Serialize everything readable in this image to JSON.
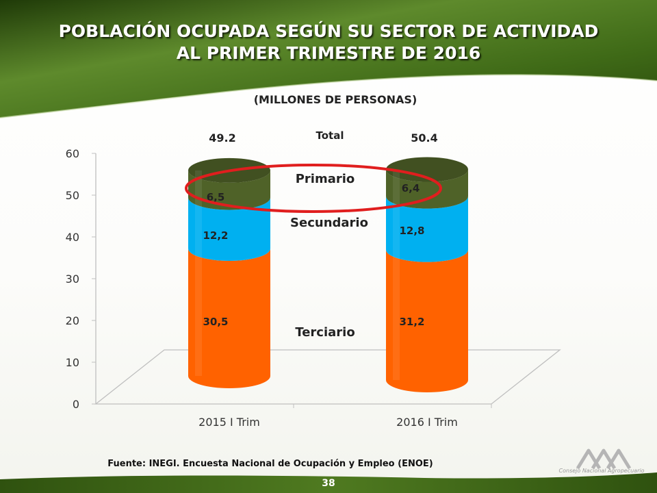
{
  "slide": {
    "title_line1": "POBLACIÓN OCUPADA SEGÚN SU SECTOR DE ACTIVIDAD",
    "title_line2": "AL PRIMER TRIMESTRE DE 2016",
    "subtitle": "(MILLONES DE PERSONAS)",
    "source": "Fuente: INEGI. Encuesta Nacional de Ocupación y Empleo (ENOE)",
    "page_number": "38",
    "logo_text": "Consejo Nacional Agropecuario",
    "logo_icon": "cna-mountains-logo",
    "colors": {
      "header_green": "#5e8a2c",
      "footer_green": "#4f7a20",
      "highlight_ellipse": "#e01e1e"
    }
  },
  "chart_data": {
    "type": "bar",
    "stacked": true,
    "style": "3d-cylinder",
    "categories": [
      "2015 I Trim",
      "2016 I Trim"
    ],
    "series": [
      {
        "name": "Terciario",
        "values": [
          30.5,
          31.2
        ],
        "labels": [
          "30,5",
          "31,2"
        ],
        "color": "#ff6200"
      },
      {
        "name": "Secundario",
        "values": [
          12.2,
          12.8
        ],
        "labels": [
          "12,2",
          "12,8"
        ],
        "color": "#00b0f0"
      },
      {
        "name": "Primario",
        "values": [
          6.5,
          6.4
        ],
        "labels": [
          "6,5",
          "6,4"
        ],
        "color": "#4f6228"
      }
    ],
    "totals": [
      "49.2",
      "50.4"
    ],
    "totals_label": "Total",
    "yticks": [
      "0",
      "10",
      "20",
      "30",
      "40",
      "50",
      "60"
    ],
    "ylim": [
      0,
      60
    ],
    "grid": false,
    "legend": "inline-labels-between-bars",
    "highlight": "Primario"
  }
}
